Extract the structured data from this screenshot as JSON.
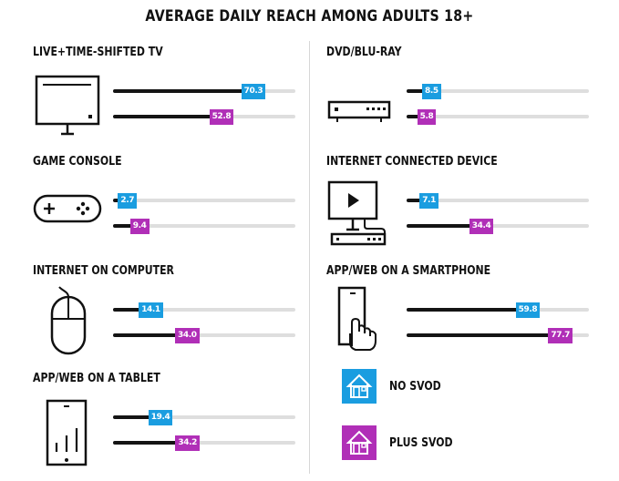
{
  "colors": {
    "no_svod": "#1a9de0",
    "plus_svod": "#b02fb7"
  },
  "legend": [
    {
      "label": "NO SVOD",
      "icon": "house-icon"
    },
    {
      "label": "PLUS SVOD",
      "icon": "house-icon"
    }
  ],
  "chart_data": {
    "type": "bar",
    "title": "AVERAGE DAILY REACH AMONG ADULTS 18+",
    "xlim": [
      0,
      100
    ],
    "grid": false,
    "legend_placement": "bottom-right",
    "series": [
      {
        "name": "NO SVOD",
        "color": "#1a9de0"
      },
      {
        "name": "PLUS SVOD",
        "color": "#b02fb7"
      }
    ],
    "panels": [
      {
        "category": "LIVE+TIME-SHIFTED TV",
        "icon": "tv-icon",
        "no_svod": 70.3,
        "plus_svod": 52.8
      },
      {
        "category": "DVD/BLU-RAY",
        "icon": "dvd-player-icon",
        "no_svod": 8.5,
        "plus_svod": 5.8
      },
      {
        "category": "GAME CONSOLE",
        "icon": "game-controller-icon",
        "no_svod": 2.7,
        "plus_svod": 9.4
      },
      {
        "category": "INTERNET CONNECTED DEVICE",
        "icon": "connected-device-icon",
        "no_svod": 7.1,
        "plus_svod": 34.4
      },
      {
        "category": "INTERNET ON COMPUTER",
        "icon": "mouse-icon",
        "no_svod": 14.1,
        "plus_svod": 34.0
      },
      {
        "category": "APP/WEB ON A SMARTPHONE",
        "icon": "smartphone-icon",
        "no_svod": 59.8,
        "plus_svod": 77.7
      },
      {
        "category": "APP/WEB ON A TABLET",
        "icon": "tablet-icon",
        "no_svod": 19.4,
        "plus_svod": 34.2
      }
    ]
  }
}
